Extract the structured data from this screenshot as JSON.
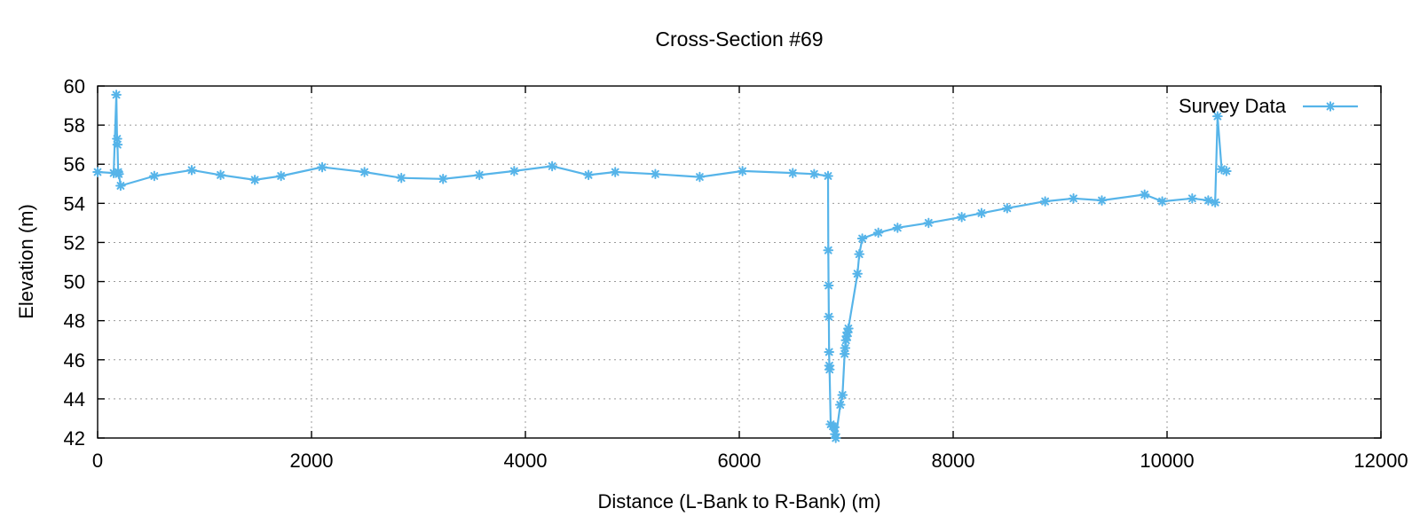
{
  "chart_data": {
    "type": "line",
    "title": "Cross-Section #69",
    "xlabel": "Distance (L-Bank to R-Bank) (m)",
    "ylabel": "Elevation (m)",
    "xlim": [
      0,
      12000
    ],
    "ylim": [
      42,
      60
    ],
    "x_ticks": [
      0,
      2000,
      4000,
      6000,
      8000,
      10000,
      12000
    ],
    "y_ticks": [
      42,
      44,
      46,
      48,
      50,
      52,
      54,
      56,
      58,
      60
    ],
    "grid": true,
    "grid_style": "dotted",
    "legend_position": "top-right",
    "marker": "asterisk",
    "colors": {
      "series": "#56b4e9",
      "grid": "#999999",
      "axis": "#000000",
      "background": "#ffffff",
      "text": "#000000"
    },
    "series": [
      {
        "name": "Survey Data",
        "color": "#56b4e9",
        "points": [
          [
            0,
            55.6
          ],
          [
            150,
            55.55
          ],
          [
            175,
            59.55
          ],
          [
            182,
            57.3
          ],
          [
            186,
            57.0
          ],
          [
            192,
            55.6
          ],
          [
            198,
            55.5
          ],
          [
            215,
            54.9
          ],
          [
            530,
            55.4
          ],
          [
            880,
            55.7
          ],
          [
            1150,
            55.45
          ],
          [
            1470,
            55.2
          ],
          [
            1715,
            55.4
          ],
          [
            2100,
            55.85
          ],
          [
            2495,
            55.6
          ],
          [
            2840,
            55.3
          ],
          [
            3230,
            55.25
          ],
          [
            3570,
            55.45
          ],
          [
            3895,
            55.65
          ],
          [
            4250,
            55.9
          ],
          [
            4590,
            55.45
          ],
          [
            4840,
            55.6
          ],
          [
            5215,
            55.5
          ],
          [
            5630,
            55.35
          ],
          [
            6030,
            55.65
          ],
          [
            6500,
            55.55
          ],
          [
            6700,
            55.5
          ],
          [
            6830,
            55.4
          ],
          [
            6832,
            51.6
          ],
          [
            6835,
            49.8
          ],
          [
            6837,
            48.2
          ],
          [
            6840,
            46.4
          ],
          [
            6842,
            45.7
          ],
          [
            6844,
            45.5
          ],
          [
            6855,
            42.7
          ],
          [
            6875,
            42.6
          ],
          [
            6890,
            42.55
          ],
          [
            6896,
            42.2
          ],
          [
            6902,
            42.0
          ],
          [
            6944,
            43.7
          ],
          [
            6965,
            44.2
          ],
          [
            6985,
            46.3
          ],
          [
            6990,
            46.6
          ],
          [
            6998,
            47.0
          ],
          [
            7005,
            47.2
          ],
          [
            7012,
            47.4
          ],
          [
            7020,
            47.6
          ],
          [
            7105,
            50.4
          ],
          [
            7122,
            51.4
          ],
          [
            7150,
            52.2
          ],
          [
            7300,
            52.5
          ],
          [
            7480,
            52.75
          ],
          [
            7770,
            53.0
          ],
          [
            8080,
            53.3
          ],
          [
            8265,
            53.5
          ],
          [
            8505,
            53.75
          ],
          [
            8860,
            54.1
          ],
          [
            9125,
            54.25
          ],
          [
            9390,
            54.15
          ],
          [
            9790,
            54.45
          ],
          [
            9955,
            54.1
          ],
          [
            10235,
            54.25
          ],
          [
            10385,
            54.15
          ],
          [
            10450,
            54.05
          ],
          [
            10472,
            58.45
          ],
          [
            10510,
            55.75
          ],
          [
            10555,
            55.65
          ]
        ]
      }
    ]
  }
}
